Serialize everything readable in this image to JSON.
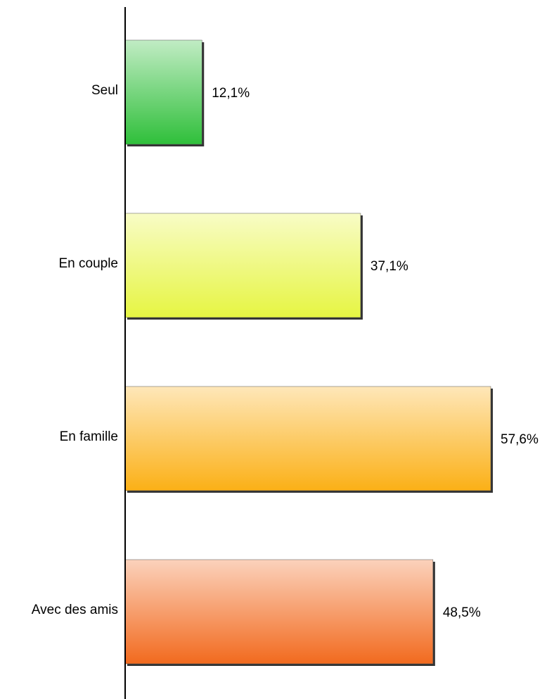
{
  "chart_data": {
    "type": "bar",
    "orientation": "horizontal",
    "categories": [
      "Seul",
      "En couple",
      "En famille",
      "Avec des amis"
    ],
    "values": [
      12.1,
      37.1,
      57.6,
      48.5
    ],
    "value_labels": [
      "12,1%",
      "37,1%",
      "57,6%",
      "48,5%"
    ],
    "colors": [
      "#2fbf3a",
      "#e6f542",
      "#fbb016",
      "#f26a1e"
    ]
  }
}
